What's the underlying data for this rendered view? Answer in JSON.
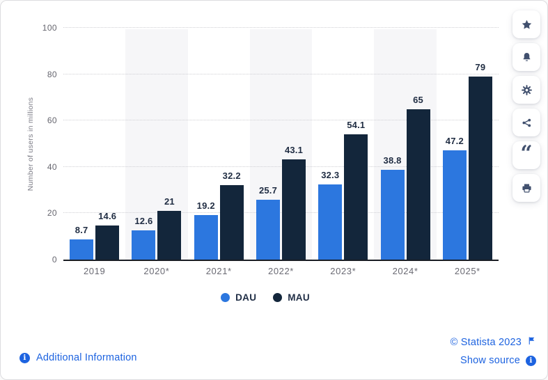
{
  "chart_data": {
    "type": "bar",
    "title": "",
    "categories": [
      "2019",
      "2020*",
      "2021*",
      "2022*",
      "2023*",
      "2024*",
      "2025*"
    ],
    "series": [
      {
        "name": "DAU",
        "color": "#2c77df",
        "values": [
          8.7,
          12.6,
          19.2,
          25.7,
          32.3,
          38.8,
          47.2
        ]
      },
      {
        "name": "MAU",
        "color": "#13263b",
        "values": [
          14.6,
          21,
          32.2,
          43.1,
          54.1,
          65,
          79
        ]
      }
    ],
    "xlabel": "",
    "ylabel": "Number of users in millions",
    "ylim": [
      0,
      100
    ],
    "yticks": [
      0,
      20,
      40,
      60,
      80,
      100
    ],
    "grid": "horizontal-dotted",
    "legend_position": "bottom",
    "band_stripe_indices": [
      1,
      3,
      5
    ],
    "stripe_color": "#f6f6f8"
  },
  "toolbar": {
    "buttons": [
      {
        "icon": "star-icon"
      },
      {
        "icon": "bell-icon"
      },
      {
        "icon": "gear-icon"
      },
      {
        "icon": "share-icon"
      },
      {
        "icon": "quote-icon",
        "glyph": "“"
      },
      {
        "icon": "print-icon"
      }
    ]
  },
  "footer": {
    "additional_info_label": "Additional Information",
    "copyright_label": "© Statista 2023",
    "show_source_label": "Show source"
  },
  "colors": {
    "link_blue": "#1d63e0",
    "icon_slate": "#41506e",
    "value_label": "#1f2c42",
    "axis_text": "#65656e"
  }
}
